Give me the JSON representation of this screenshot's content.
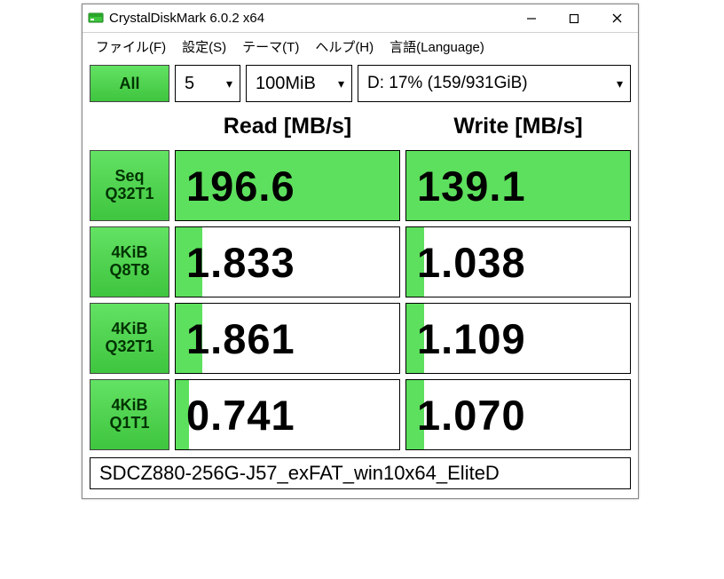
{
  "window": {
    "title": "CrystalDiskMark 6.0.2 x64"
  },
  "menu": {
    "file": "ファイル(F)",
    "settings": "設定(S)",
    "theme": "テーマ(T)",
    "help": "ヘルプ(H)",
    "language": "言語(Language)"
  },
  "controls": {
    "all_label": "All",
    "runs": "5",
    "size": "100MiB",
    "drive": "D: 17% (159/931GiB)"
  },
  "columns": {
    "read": "Read [MB/s]",
    "write": "Write [MB/s]"
  },
  "rows": [
    {
      "l1": "Seq",
      "l2": "Q32T1",
      "read": "196.6",
      "write": "139.1",
      "read_fill": 100,
      "write_fill": 100
    },
    {
      "l1": "4KiB",
      "l2": "Q8T8",
      "read": "1.833",
      "write": "1.038",
      "read_fill": 12,
      "write_fill": 8
    },
    {
      "l1": "4KiB",
      "l2": "Q32T1",
      "read": "1.861",
      "write": "1.109",
      "read_fill": 12,
      "write_fill": 8
    },
    {
      "l1": "4KiB",
      "l2": "Q1T1",
      "read": "0.741",
      "write": "1.070",
      "read_fill": 6,
      "write_fill": 8
    }
  ],
  "footer": {
    "text": "SDCZ880-256G-J57_exFAT_win10x64_EliteD"
  },
  "colors": {
    "button_green_top": "#63e263",
    "button_green_bottom": "#3fc53f",
    "fill_green": "#5de05d",
    "border": "#000000",
    "text": "#000000",
    "background": "#ffffff"
  }
}
